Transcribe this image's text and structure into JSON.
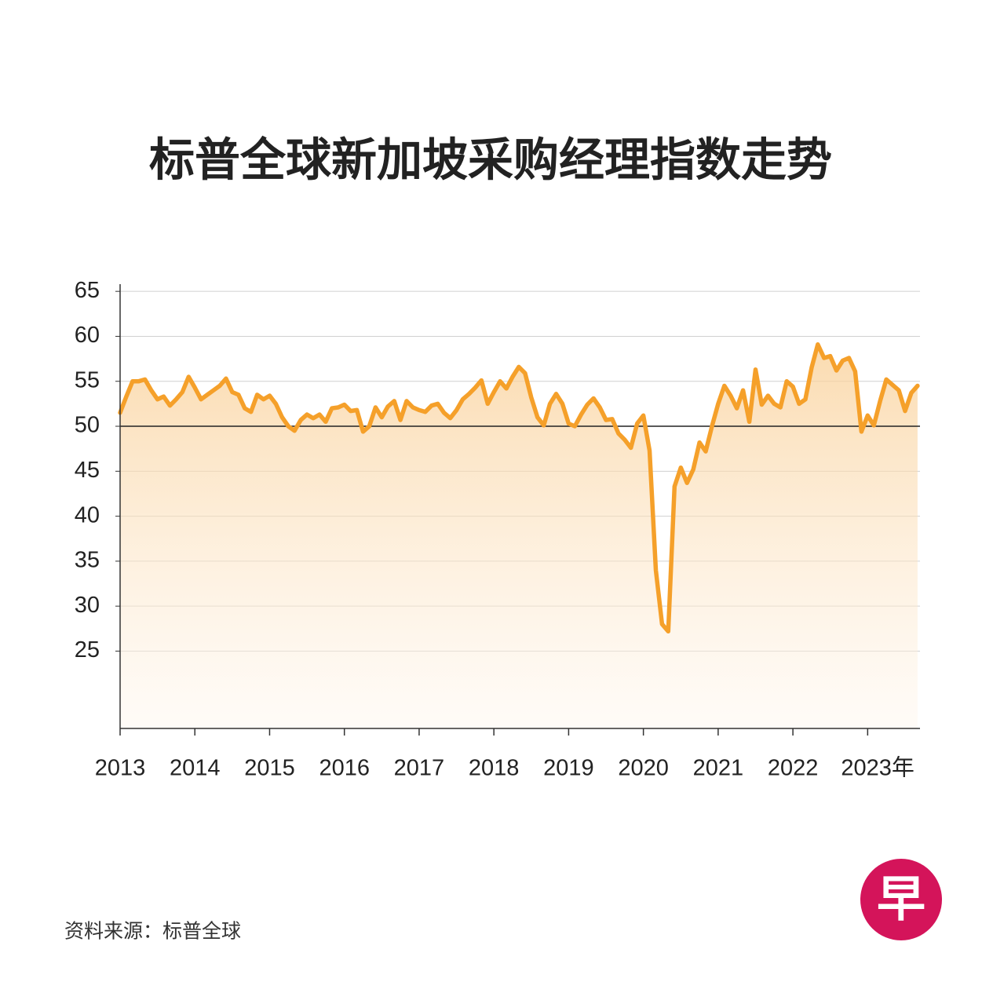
{
  "chart_data": {
    "type": "line",
    "title": "标普全球新加坡采购经理指数走势",
    "source": "资料来源：标普全球",
    "logo": "早",
    "xlim": [
      2013,
      2023.7
    ],
    "xticks": [
      2013,
      2014,
      2015,
      2016,
      2017,
      2018,
      2019,
      2020,
      2021,
      2022,
      {
        "value": 2023,
        "label": "2023年"
      }
    ],
    "ylim": [
      16.4,
      65.8
    ],
    "yticks": [
      25,
      30,
      35,
      40,
      45,
      50,
      55,
      60,
      65
    ],
    "reference_line": 50,
    "grid": true,
    "x": [
      2013,
      2013.083,
      2013.167,
      2013.25,
      2013.333,
      2013.417,
      2013.5,
      2013.583,
      2013.667,
      2013.75,
      2013.833,
      2013.917,
      2014,
      2014.083,
      2014.167,
      2014.25,
      2014.333,
      2014.417,
      2014.5,
      2014.583,
      2014.667,
      2014.75,
      2014.833,
      2014.917,
      2015,
      2015.083,
      2015.167,
      2015.25,
      2015.333,
      2015.417,
      2015.5,
      2015.583,
      2015.667,
      2015.75,
      2015.833,
      2015.917,
      2016,
      2016.083,
      2016.167,
      2016.25,
      2016.333,
      2016.417,
      2016.5,
      2016.583,
      2016.667,
      2016.75,
      2016.833,
      2016.917,
      2017,
      2017.083,
      2017.167,
      2017.25,
      2017.333,
      2017.417,
      2017.5,
      2017.583,
      2017.667,
      2017.75,
      2017.833,
      2017.917,
      2018,
      2018.083,
      2018.167,
      2018.25,
      2018.333,
      2018.417,
      2018.5,
      2018.583,
      2018.667,
      2018.75,
      2018.833,
      2018.917,
      2019,
      2019.083,
      2019.167,
      2019.25,
      2019.333,
      2019.417,
      2019.5,
      2019.583,
      2019.667,
      2019.75,
      2019.833,
      2019.917,
      2020,
      2020.083,
      2020.167,
      2020.25,
      2020.333,
      2020.417,
      2020.5,
      2020.583,
      2020.667,
      2020.75,
      2020.833,
      2020.917,
      2021,
      2021.083,
      2021.167,
      2021.25,
      2021.333,
      2021.417,
      2021.5,
      2021.583,
      2021.667,
      2021.75,
      2021.833,
      2021.917,
      2022,
      2022.083,
      2022.167,
      2022.25,
      2022.333,
      2022.417,
      2022.5,
      2022.583,
      2022.667,
      2022.75,
      2022.833,
      2022.917,
      2023,
      2023.083,
      2023.167,
      2023.25,
      2023.333,
      2023.417,
      2023.5,
      2023.583,
      2023.667
    ],
    "series": [
      {
        "color": "#f5a02a",
        "values": [
          51.5,
          53.3,
          55,
          55,
          55.2,
          54,
          53,
          53.3,
          52.3,
          53,
          53.8,
          55.5,
          54.3,
          53,
          53.5,
          54,
          54.5,
          55.3,
          53.8,
          53.5,
          52,
          51.6,
          53.5,
          53,
          53.4,
          52.5,
          51,
          50,
          49.5,
          50.7,
          51.3,
          50.9,
          51.3,
          50.5,
          52,
          52.1,
          52.4,
          51.7,
          51.8,
          49.4,
          50,
          52.1,
          51,
          52.2,
          52.8,
          50.7,
          52.8,
          52.1,
          51.8,
          51.6,
          52.3,
          52.5,
          51.5,
          50.9,
          51.8,
          53,
          53.6,
          54.3,
          55.1,
          52.5,
          53.8,
          55,
          54.2,
          55.5,
          56.6,
          55.9,
          53.2,
          51,
          50.1,
          52.5,
          53.6,
          52.5,
          50.3,
          50,
          51.3,
          52.4,
          53.1,
          52.1,
          50.7,
          50.8,
          49.2,
          48.5,
          47.6,
          50.3,
          51.2,
          47.3,
          34,
          28,
          27.2,
          43.3,
          45.4,
          43.7,
          45.2,
          48.2,
          47.2,
          50,
          52.5,
          54.5,
          53.4,
          52,
          54,
          50.5,
          56.3,
          52.4,
          53.4,
          52.5,
          52.1,
          55,
          54.4,
          52.5,
          53,
          56.5,
          59.1,
          57.6,
          57.8,
          56.2,
          57.3,
          57.6,
          56.1,
          49.4,
          51.2,
          50.1,
          52.8,
          55.2,
          54.6,
          54,
          51.7,
          53.7,
          54.5
        ]
      }
    ]
  }
}
